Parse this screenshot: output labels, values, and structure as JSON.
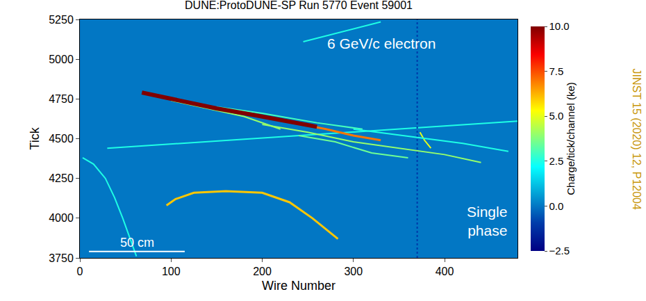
{
  "chart_data": {
    "type": "heatmap",
    "title": "DUNE:ProtoDUNE-SP Run 5770 Event 59001",
    "x_label": "Wire Number",
    "y_label": "Tick",
    "xlim": [
      0,
      480
    ],
    "ylim": [
      3750,
      5250
    ],
    "xticks": [
      0,
      100,
      200,
      300,
      400
    ],
    "yticks": [
      3750,
      4000,
      4250,
      4500,
      4750,
      5000,
      5250
    ],
    "background_charge": 0,
    "colorbar": {
      "title": "Charge/tick/channel (ke)",
      "range": [
        -2.5,
        10
      ],
      "ticks": [
        {
          "value": -2.5,
          "label": "−2.5"
        },
        {
          "value": 0,
          "label": "0.0"
        },
        2.5,
        {
          "value": 5,
          "label": "5.0"
        },
        7.5,
        {
          "value": 10,
          "label": "10.0"
        }
      ]
    },
    "tracks": [
      {
        "wire": [
          30,
          480
        ],
        "tick": [
          4440,
          4610
        ],
        "charge": 2.5
      },
      {
        "wire": [
          245,
          330
        ],
        "tick": [
          5110,
          5235
        ],
        "charge": 2.5
      },
      {
        "wire": [
          3,
          15,
          28,
          38,
          47,
          55,
          62
        ],
        "tick": [
          4380,
          4340,
          4250,
          4130,
          4000,
          3870,
          3760
        ],
        "charge": 2.5
      },
      {
        "wire": [
          95,
          105,
          125,
          160,
          200,
          230,
          255,
          283
        ],
        "tick": [
          4080,
          4120,
          4160,
          4170,
          4160,
          4100,
          4000,
          3870
        ],
        "charge": 6
      },
      {
        "wire": [
          370,
          370
        ],
        "tick": [
          3750,
          5250
        ],
        "charge": -1,
        "line_style": "dot"
      },
      {
        "wire": [
          373,
          378,
          385
        ],
        "tick": [
          4540,
          4490,
          4440
        ],
        "charge": 5
      },
      {
        "wire": [
          200,
          250,
          300,
          350,
          400,
          440
        ],
        "tick": [
          4590,
          4540,
          4480,
          4440,
          4400,
          4350
        ],
        "charge": 4
      },
      {
        "wire": [
          150,
          200,
          260,
          310
        ],
        "tick": [
          4700,
          4660,
          4600,
          4560
        ],
        "charge": 3
      },
      {
        "wire": [
          240,
          280,
          320,
          360
        ],
        "tick": [
          4520,
          4480,
          4410,
          4380
        ],
        "charge": 3.5
      },
      {
        "wire": [
          300,
          340,
          380,
          420,
          470
        ],
        "tick": [
          4560,
          4530,
          4500,
          4470,
          4420
        ],
        "charge": 2.5
      },
      {
        "wire": [
          100,
          140,
          180,
          220
        ],
        "tick": [
          4740,
          4690,
          4640,
          4560
        ],
        "charge": 4
      },
      {
        "wire": [
          230,
          270,
          300,
          330
        ],
        "tick": [
          4605,
          4560,
          4520,
          4490
        ],
        "charge": 7
      },
      {
        "wire": [
          68,
          110,
          150,
          190,
          230,
          260
        ],
        "tick": [
          4790,
          4740,
          4690,
          4650,
          4610,
          4575
        ],
        "charge": 10
      }
    ],
    "scale_bar": {
      "label": "50 cm",
      "wire": [
        10,
        115
      ],
      "tick": 3790
    },
    "annotations": [
      {
        "text": "6 GeV/c electron",
        "wire": 270,
        "tick": 5100
      },
      {
        "text": "Single phase",
        "wire": 470,
        "tick": 3980
      }
    ],
    "source": "JINST 15 (2020) 12, P12004"
  }
}
